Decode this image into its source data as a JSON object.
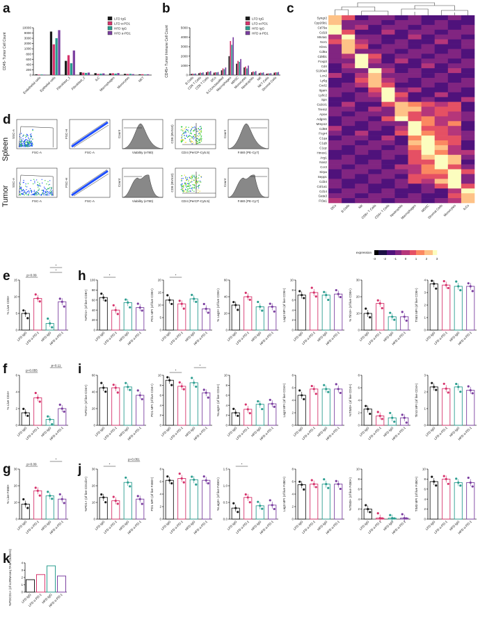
{
  "panels": {
    "a": "a",
    "b": "b",
    "c": "c",
    "d": "d",
    "e": "e",
    "f": "f",
    "g": "g",
    "h": "h",
    "i": "i",
    "j": "j",
    "k": "k"
  },
  "colors": {
    "lfd_igg": "#1a1a1a",
    "lfd_apd1": "#d6336c",
    "hfd_igg": "#2a9d8f",
    "hfd_apd1": "#7b3fa0"
  },
  "chart_data": [
    {
      "id": "a",
      "type": "bar",
      "ylabel": "CD45- Tumor Cell Count",
      "categories": [
        "Endothelial cells",
        "Epithelial cells",
        "Fibroblast_1",
        "Fibroblast_2",
        "ILC",
        "Macrophages",
        "Monocytes",
        "NKT"
      ],
      "series": [
        {
          "name": "LFD IgG",
          "values": [
            150,
            9200,
            3000,
            600,
            400,
            350,
            250,
            150
          ]
        },
        {
          "name": "LFD α-PD1",
          "values": [
            100,
            6500,
            4200,
            500,
            250,
            380,
            220,
            180
          ]
        },
        {
          "name": "HFD IgG",
          "values": [
            120,
            7800,
            2500,
            450,
            300,
            300,
            260,
            120
          ]
        },
        {
          "name": "HFD α-PD1",
          "values": [
            90,
            9500,
            5200,
            520,
            350,
            420,
            200,
            160
          ]
        }
      ],
      "yticks": [
        "0",
        "200",
        "400",
        "600",
        "800",
        "1000",
        "2000",
        "3000",
        "9000",
        "10000"
      ]
    },
    {
      "id": "b",
      "type": "bar",
      "ylabel": "CD45+ Tumor Immune Cell Count",
      "categories": [
        "B Cells",
        "CD4 T Cells",
        "CD8 T Cells",
        "DCs",
        "ILC/Unclassified",
        "Macrophages",
        "MDSC",
        "Monocytes",
        "Neutrophils",
        "NK",
        "NKT Cells",
        "Stromal Cells"
      ],
      "series": [
        {
          "name": "LFD IgG",
          "values": [
            120,
            200,
            300,
            250,
            500,
            2000,
            1200,
            800,
            300,
            200,
            150,
            250
          ]
        },
        {
          "name": "LFD α-PD1",
          "values": [
            150,
            260,
            380,
            300,
            700,
            3600,
            1500,
            900,
            380,
            260,
            180,
            300
          ]
        },
        {
          "name": "HFD IgG",
          "values": [
            130,
            230,
            330,
            280,
            620,
            3200,
            1400,
            700,
            330,
            230,
            170,
            280
          ]
        },
        {
          "name": "HFD α-PD1",
          "values": [
            160,
            280,
            420,
            320,
            800,
            4000,
            1700,
            1000,
            420,
            280,
            200,
            320
          ]
        }
      ],
      "yticks": [
        "0",
        "1000",
        "2000",
        "3000",
        "4000",
        "5000"
      ]
    },
    {
      "id": "c",
      "type": "heatmap",
      "genes": [
        "Syngr2",
        "Cyp26b1",
        "Cd79a",
        "Cd19",
        "Ms4a1",
        "Ncr1",
        "Klre1",
        "Cd8a",
        "Cd8b1",
        "Foxp3",
        "Cd4",
        "S100a8",
        "Lcn2",
        "Ly6g",
        "Cxcl2",
        "Itgam",
        "Ly6c2",
        "Spn",
        "Cx3cr1",
        "Trem2",
        "Apoe",
        "Adgre1",
        "Mmp12",
        "Cd68",
        "Fcgr4",
        "C1qa",
        "C1qb",
        "C1qc",
        "Hmox1",
        "Arg1",
        "Nos2",
        "Ccr2",
        "Sirpa",
        "Sepp1",
        "Cd34",
        "Col1a1",
        "Cd14",
        "Gata3",
        "Ft3a1"
      ],
      "clusters": [
        "DCs",
        "B Cells",
        "NK",
        "CD8+ T Cells",
        "CD4+ T Cells",
        "Neutrophils",
        "Macrophages",
        "MDSC",
        "Stromal Cells",
        "Monocytes",
        "ILCs"
      ],
      "legend": {
        "title": "expression",
        "ticks": [
          "-3",
          "-2",
          "-1",
          "0",
          "1",
          "2",
          "3"
        ]
      }
    }
  ],
  "flow": {
    "rows": [
      "Spleen",
      "Tumor"
    ],
    "plots": [
      {
        "x": "FSC-A",
        "y": "SSC-A"
      },
      {
        "x": "FSC-A",
        "y": "FSC-H"
      },
      {
        "x": "Viability (e780)",
        "y": "Count"
      },
      {
        "x": "CD4 (PerCP-Cy5.5)",
        "y": "CD8 (BV510)"
      },
      {
        "x": "F480 (PE-Cy7)",
        "y": "Count"
      }
    ]
  },
  "dot_groups": [
    "LFD IgG",
    "LFD α-PD-1",
    "HFD IgG",
    "HFD α-PD-1"
  ],
  "dot_panels": [
    {
      "id": "e",
      "ylabel": "% Live CD8+",
      "ymax": 15,
      "yticks": [
        "0",
        "5",
        "10",
        "15"
      ],
      "means": [
        5,
        9.5,
        2,
        8.5
      ],
      "annot": [
        "p=0.09",
        "*",
        "*"
      ]
    },
    {
      "id": "h1",
      "ylabel": "%PD1+ (of live CD8+)",
      "ymax": 100,
      "yticks": [
        "0",
        "20",
        "40",
        "60",
        "80",
        "100"
      ],
      "means": [
        65,
        40,
        55,
        45
      ],
      "annot": [
        "*"
      ]
    },
    {
      "id": "h2",
      "ylabel": "PD1 MFI (of live CD8+)",
      "ymax": 20,
      "yticks": [
        "0",
        "5",
        "10",
        "15",
        "20"
      ],
      "means": [
        12,
        10.5,
        12.5,
        8.5
      ],
      "annot": [
        "*"
      ]
    },
    {
      "id": "h3",
      "ylabel": "% Lag3+ (of live CD8+)",
      "ymax": 60,
      "yticks": [
        "0",
        "20",
        "40",
        "60"
      ],
      "means": [
        30,
        40,
        28,
        28
      ],
      "annot": []
    },
    {
      "id": "h4",
      "ylabel": "Lag3 MFI (of live CD8+)",
      "ymax": 10,
      "yticks": [
        "0",
        "2",
        "4",
        "6",
        "8",
        "10"
      ],
      "means": [
        7,
        7.5,
        7,
        7.2
      ],
      "annot": []
    },
    {
      "id": "h5",
      "ylabel": "% Tim3+ (of live CD8+)",
      "ymax": 30,
      "yticks": [
        "0",
        "10",
        "20",
        "30"
      ],
      "means": [
        10,
        16,
        8,
        8
      ],
      "annot": []
    },
    {
      "id": "h6",
      "ylabel": "TIM3 MFI (of live CD8+)",
      "ymax": 4,
      "yticks": [
        "0",
        "1",
        "2",
        "3",
        "4"
      ],
      "means": [
        3.7,
        3.6,
        3.5,
        3.5
      ],
      "annot": []
    },
    {
      "id": "f",
      "ylabel": "% Live CD4+",
      "ymax": 6,
      "yticks": [
        "0",
        "2",
        "4",
        "6"
      ],
      "means": [
        1.5,
        3.3,
        0.7,
        2
      ],
      "annot": [
        "p=0.055",
        "p=0.11"
      ]
    },
    {
      "id": "i1",
      "ylabel": "%PD1+ (of live CD4+)",
      "ymax": 60,
      "yticks": [
        "0",
        "20",
        "40",
        "60"
      ],
      "means": [
        45,
        45,
        46,
        36
      ],
      "annot": []
    },
    {
      "id": "i2",
      "ylabel": "PD1 MFI (of live CD4+)",
      "ymax": 10,
      "yticks": [
        "0",
        "2",
        "4",
        "6",
        "8",
        "10"
      ],
      "means": [
        9,
        7.8,
        8.5,
        6.5
      ],
      "annot": [
        "*",
        "*"
      ]
    },
    {
      "id": "i3",
      "ylabel": "%Lag3+ (of live CD4+)",
      "ymax": 10,
      "yticks": [
        "0",
        "2",
        "4",
        "6",
        "8",
        "10"
      ],
      "means": [
        2.5,
        3.2,
        4.2,
        4.3
      ],
      "annot": []
    },
    {
      "id": "i4",
      "ylabel": "Lag3 MFI (of live CD4+)",
      "ymax": 8,
      "yticks": [
        "0",
        "2",
        "4",
        "6",
        "8"
      ],
      "means": [
        4.8,
        5.8,
        5.8,
        5.8
      ],
      "annot": []
    },
    {
      "id": "i5",
      "ylabel": "%TIM3+ (of live CD4+)",
      "ymax": 8,
      "yticks": [
        "0",
        "2",
        "4",
        "6",
        "8"
      ],
      "means": [
        2.6,
        1.5,
        1.2,
        1.2
      ],
      "annot": []
    },
    {
      "id": "i6",
      "ylabel": "Tim3 MFI (of live CD4+)",
      "ymax": 3,
      "yticks": [
        "0",
        "1",
        "2",
        "3"
      ],
      "means": [
        2.3,
        2.2,
        2.3,
        2.1
      ],
      "annot": []
    },
    {
      "id": "g",
      "ylabel": "% Live F480+",
      "ymax": 30,
      "yticks": [
        "0",
        "10",
        "20",
        "30"
      ],
      "means": [
        9,
        17,
        14,
        12
      ],
      "annot": [
        "p=0.09",
        "*"
      ]
    },
    {
      "id": "j1",
      "ylabel": "%PD1+ (of live CD11b+)",
      "ymax": 30,
      "yticks": [
        "0",
        "10",
        "20",
        "30"
      ],
      "means": [
        13,
        11,
        22,
        12
      ],
      "annot": [
        "*",
        "p=0.051"
      ]
    },
    {
      "id": "j2",
      "ylabel": "PD1 MFI (of live F480+)",
      "ymax": 8,
      "yticks": [
        "0",
        "2",
        "4",
        "6",
        "8"
      ],
      "means": [
        6.2,
        6.5,
        6.3,
        6.2
      ],
      "annot": []
    },
    {
      "id": "j3",
      "ylabel": "%Lag3+ (of live F480+)",
      "ymax": 1.5,
      "yticks": [
        "0.0",
        "0.5",
        "1.0",
        "1.5"
      ],
      "means": [
        0.33,
        0.65,
        0.4,
        0.42
      ],
      "annot": [
        "*"
      ]
    },
    {
      "id": "j4",
      "ylabel": "Lag3 MFI (of live F480+)",
      "ymax": 8,
      "yticks": [
        "0",
        "2",
        "4",
        "6",
        "8"
      ],
      "means": [
        5.5,
        5.6,
        5.6,
        5.6
      ],
      "annot": []
    },
    {
      "id": "j5",
      "ylabel": "%TIM3+ (of live F480+)",
      "ymax": 10,
      "yticks": [
        "0",
        "2",
        "4",
        "6",
        "8",
        "10"
      ],
      "means": [
        2,
        0.2,
        0.2,
        0.2
      ],
      "annot": []
    },
    {
      "id": "j6",
      "ylabel": "TIM3 MFI (of live F480+)",
      "ymax": 10,
      "yticks": [
        "0",
        "2",
        "4",
        "6",
        "8",
        "10"
      ],
      "means": [
        7.5,
        8,
        7.3,
        7.3
      ],
      "annot": []
    }
  ],
  "k": {
    "ylabel": "%PDCD1+ (of scRNAseq TAM Clusters)",
    "yticks": [
      "0",
      "1",
      "2",
      "3",
      "4"
    ],
    "ymax": 4,
    "values": [
      1.7,
      2.4,
      3.6,
      2.2
    ]
  }
}
